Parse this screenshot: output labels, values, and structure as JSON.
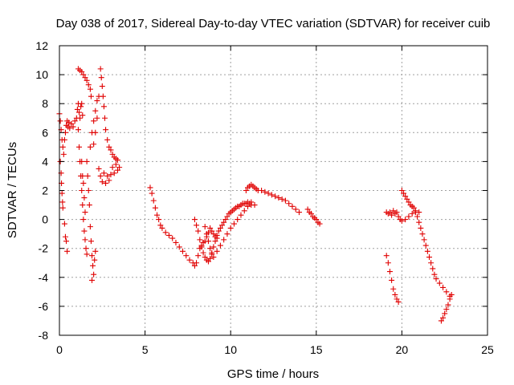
{
  "chart_data": {
    "type": "scatter",
    "title": "Day 038 of 2017, Sidereal Day-to-day VTEC variation (SDTVAR) for receiver cuib",
    "xlabel": "GPS time / hours",
    "ylabel": "SDTVAR / TECUs",
    "xlim": [
      0,
      25
    ],
    "ylim": [
      -8,
      12
    ],
    "xticks": [
      0,
      5,
      10,
      15,
      20,
      25
    ],
    "yticks": [
      -8,
      -6,
      -4,
      -2,
      0,
      2,
      4,
      6,
      8,
      10,
      12
    ],
    "xtick_labels": [
      "0",
      "5",
      "10",
      "15",
      "20",
      "25"
    ],
    "ytick_labels": [
      "-8",
      "-6",
      "-4",
      "-2",
      "0",
      "2",
      "4",
      "6",
      "8",
      "10",
      "12"
    ],
    "grid": true,
    "marker": "+",
    "color": "#e00000",
    "series": [
      {
        "name": "SDTVAR",
        "points": [
          [
            0.0,
            7.3
          ],
          [
            0.05,
            6.8
          ],
          [
            0.1,
            6.2
          ],
          [
            0.15,
            5.5
          ],
          [
            0.2,
            5.0
          ],
          [
            0.25,
            4.5
          ],
          [
            0.3,
            5.5
          ],
          [
            0.35,
            6.0
          ],
          [
            0.4,
            6.5
          ],
          [
            0.45,
            6.8
          ],
          [
            0.5,
            6.4
          ],
          [
            0.55,
            6.7
          ],
          [
            0.6,
            6.3
          ],
          [
            0.7,
            6.6
          ],
          [
            0.8,
            6.4
          ],
          [
            0.9,
            6.8
          ],
          [
            1.0,
            7.0
          ],
          [
            1.05,
            7.6
          ],
          [
            1.1,
            8.0
          ],
          [
            1.15,
            7.4
          ],
          [
            1.2,
            7.0
          ],
          [
            1.25,
            7.8
          ],
          [
            1.3,
            8.0
          ],
          [
            1.35,
            7.2
          ],
          [
            0.05,
            4.0
          ],
          [
            0.1,
            3.2
          ],
          [
            0.12,
            2.5
          ],
          [
            0.15,
            1.8
          ],
          [
            0.18,
            1.2
          ],
          [
            0.2,
            0.8
          ],
          [
            0.3,
            -0.3
          ],
          [
            0.35,
            -1.2
          ],
          [
            0.4,
            -1.5
          ],
          [
            0.45,
            -2.2
          ],
          [
            1.1,
            10.4
          ],
          [
            1.2,
            10.3
          ],
          [
            1.3,
            10.2
          ],
          [
            1.4,
            10.0
          ],
          [
            1.5,
            9.8
          ],
          [
            1.6,
            9.6
          ],
          [
            1.7,
            9.3
          ],
          [
            1.8,
            9.0
          ],
          [
            1.85,
            8.5
          ],
          [
            1.1,
            6.2
          ],
          [
            1.15,
            5.0
          ],
          [
            1.2,
            4.0
          ],
          [
            1.25,
            3.0
          ],
          [
            1.3,
            2.0
          ],
          [
            1.35,
            1.0
          ],
          [
            1.4,
            0.0
          ],
          [
            1.45,
            -0.8
          ],
          [
            1.5,
            -1.4
          ],
          [
            1.55,
            -2.0
          ],
          [
            1.6,
            -2.4
          ],
          [
            1.3,
            4.0
          ],
          [
            1.35,
            3.0
          ],
          [
            1.4,
            2.5
          ],
          [
            1.45,
            1.5
          ],
          [
            1.5,
            0.5
          ],
          [
            1.6,
            4.0
          ],
          [
            1.65,
            3.0
          ],
          [
            1.7,
            2.0
          ],
          [
            1.75,
            1.0
          ],
          [
            1.8,
            -0.5
          ],
          [
            1.85,
            -1.5
          ],
          [
            1.9,
            -2.5
          ],
          [
            1.95,
            -3.2
          ],
          [
            2.0,
            -3.8
          ],
          [
            1.9,
            -4.2
          ],
          [
            2.05,
            -2.8
          ],
          [
            2.1,
            -2.2
          ],
          [
            1.8,
            5.0
          ],
          [
            1.9,
            6.0
          ],
          [
            2.0,
            6.8
          ],
          [
            2.1,
            7.5
          ],
          [
            2.2,
            8.2
          ],
          [
            2.3,
            8.5
          ],
          [
            2.2,
            7.0
          ],
          [
            2.1,
            6.0
          ],
          [
            2.0,
            5.2
          ],
          [
            2.4,
            10.4
          ],
          [
            2.45,
            9.8
          ],
          [
            2.5,
            9.2
          ],
          [
            2.55,
            8.5
          ],
          [
            2.6,
            7.8
          ],
          [
            2.65,
            7.0
          ],
          [
            2.7,
            6.2
          ],
          [
            2.8,
            5.5
          ],
          [
            2.9,
            5.0
          ],
          [
            3.0,
            4.8
          ],
          [
            3.1,
            4.5
          ],
          [
            3.2,
            4.3
          ],
          [
            3.3,
            4.2
          ],
          [
            3.4,
            4.1
          ],
          [
            2.3,
            3.5
          ],
          [
            2.4,
            3.0
          ],
          [
            2.5,
            2.6
          ],
          [
            2.6,
            3.2
          ],
          [
            2.7,
            2.5
          ],
          [
            2.8,
            3.0
          ],
          [
            2.9,
            2.7
          ],
          [
            3.0,
            3.1
          ],
          [
            3.1,
            3.6
          ],
          [
            3.2,
            3.2
          ],
          [
            3.3,
            3.8
          ],
          [
            3.4,
            3.4
          ],
          [
            3.5,
            3.6
          ],
          [
            5.3,
            2.2
          ],
          [
            5.4,
            1.8
          ],
          [
            5.5,
            1.3
          ],
          [
            5.6,
            0.8
          ],
          [
            5.7,
            0.3
          ],
          [
            5.8,
            0.0
          ],
          [
            5.9,
            -0.4
          ],
          [
            6.0,
            -0.6
          ],
          [
            6.2,
            -0.9
          ],
          [
            6.4,
            -1.1
          ],
          [
            6.6,
            -1.3
          ],
          [
            6.8,
            -1.6
          ],
          [
            7.0,
            -1.9
          ],
          [
            7.2,
            -2.2
          ],
          [
            7.4,
            -2.5
          ],
          [
            7.6,
            -2.8
          ],
          [
            7.8,
            -3.0
          ],
          [
            7.9,
            -3.2
          ],
          [
            8.0,
            -3.0
          ],
          [
            8.1,
            -2.5
          ],
          [
            8.2,
            -2.0
          ],
          [
            8.3,
            -1.8
          ],
          [
            8.4,
            -1.6
          ],
          [
            8.5,
            -1.5
          ],
          [
            8.6,
            -1.2
          ],
          [
            8.7,
            -0.9
          ],
          [
            8.8,
            -0.6
          ],
          [
            8.9,
            -0.8
          ],
          [
            9.0,
            -1.0
          ],
          [
            9.1,
            -1.2
          ],
          [
            9.2,
            -1.3
          ],
          [
            7.9,
            0.0
          ],
          [
            8.0,
            -0.4
          ],
          [
            8.1,
            -0.8
          ],
          [
            8.2,
            -1.4
          ],
          [
            8.3,
            -1.9
          ],
          [
            8.4,
            -2.3
          ],
          [
            8.5,
            -2.6
          ],
          [
            8.6,
            -2.8
          ],
          [
            8.7,
            -2.9
          ],
          [
            8.8,
            -2.7
          ],
          [
            8.9,
            -2.3
          ],
          [
            9.0,
            -1.9
          ],
          [
            9.1,
            -1.5
          ],
          [
            9.2,
            -1.1
          ],
          [
            9.3,
            -0.8
          ],
          [
            9.4,
            -0.6
          ],
          [
            9.5,
            -0.4
          ],
          [
            9.6,
            -0.2
          ],
          [
            9.7,
            0.0
          ],
          [
            9.8,
            0.2
          ],
          [
            9.9,
            0.4
          ],
          [
            10.0,
            0.5
          ],
          [
            10.1,
            0.6
          ],
          [
            10.2,
            0.7
          ],
          [
            10.3,
            0.8
          ],
          [
            10.4,
            0.9
          ],
          [
            10.5,
            0.9
          ],
          [
            10.6,
            1.0
          ],
          [
            10.7,
            1.1
          ],
          [
            10.8,
            1.1
          ],
          [
            10.9,
            1.1
          ],
          [
            11.0,
            1.2
          ],
          [
            11.1,
            1.1
          ],
          [
            11.2,
            1.0
          ],
          [
            8.5,
            -0.5
          ],
          [
            8.6,
            -1.0
          ],
          [
            8.7,
            -1.5
          ],
          [
            8.8,
            -2.0
          ],
          [
            8.9,
            -2.4
          ],
          [
            9.0,
            -2.6
          ],
          [
            9.2,
            -2.2
          ],
          [
            9.4,
            -1.8
          ],
          [
            9.6,
            -1.4
          ],
          [
            9.8,
            -1.0
          ],
          [
            10.0,
            -0.6
          ],
          [
            10.2,
            -0.3
          ],
          [
            10.4,
            0.0
          ],
          [
            10.6,
            0.3
          ],
          [
            10.8,
            0.6
          ],
          [
            11.0,
            0.9
          ],
          [
            11.2,
            1.2
          ],
          [
            11.4,
            1.0
          ],
          [
            10.9,
            2.0
          ],
          [
            11.0,
            2.2
          ],
          [
            11.1,
            2.3
          ],
          [
            11.2,
            2.4
          ],
          [
            11.3,
            2.3
          ],
          [
            11.4,
            2.2
          ],
          [
            11.5,
            2.1
          ],
          [
            11.6,
            2.0
          ],
          [
            11.8,
            2.0
          ],
          [
            12.0,
            1.9
          ],
          [
            12.2,
            1.8
          ],
          [
            12.4,
            1.7
          ],
          [
            12.6,
            1.6
          ],
          [
            12.8,
            1.5
          ],
          [
            13.0,
            1.4
          ],
          [
            13.2,
            1.3
          ],
          [
            13.4,
            1.1
          ],
          [
            13.6,
            0.9
          ],
          [
            13.8,
            0.7
          ],
          [
            14.0,
            0.5
          ],
          [
            14.5,
            0.7
          ],
          [
            14.6,
            0.5
          ],
          [
            14.7,
            0.4
          ],
          [
            14.8,
            0.2
          ],
          [
            14.9,
            0.1
          ],
          [
            15.0,
            0.0
          ],
          [
            15.1,
            -0.2
          ],
          [
            15.2,
            -0.3
          ],
          [
            19.1,
            0.5
          ],
          [
            19.2,
            0.4
          ],
          [
            19.3,
            0.5
          ],
          [
            19.4,
            0.3
          ],
          [
            19.5,
            0.6
          ],
          [
            19.6,
            0.4
          ],
          [
            19.7,
            0.5
          ],
          [
            19.8,
            0.2
          ],
          [
            19.1,
            -2.5
          ],
          [
            19.2,
            -3.0
          ],
          [
            19.3,
            -3.6
          ],
          [
            19.4,
            -4.2
          ],
          [
            19.5,
            -4.8
          ],
          [
            19.6,
            -5.2
          ],
          [
            19.7,
            -5.5
          ],
          [
            19.8,
            -5.7
          ],
          [
            20.0,
            2.0
          ],
          [
            20.1,
            1.8
          ],
          [
            20.2,
            1.6
          ],
          [
            20.3,
            1.4
          ],
          [
            20.4,
            1.2
          ],
          [
            20.5,
            1.0
          ],
          [
            20.6,
            0.9
          ],
          [
            20.7,
            0.8
          ],
          [
            20.8,
            0.5
          ],
          [
            20.9,
            0.2
          ],
          [
            21.0,
            -0.2
          ],
          [
            21.1,
            -0.6
          ],
          [
            21.2,
            -1.0
          ],
          [
            21.3,
            -1.4
          ],
          [
            21.4,
            -1.8
          ],
          [
            21.5,
            -2.2
          ],
          [
            21.6,
            -2.6
          ],
          [
            21.7,
            -3.0
          ],
          [
            21.8,
            -3.4
          ],
          [
            21.9,
            -3.8
          ],
          [
            22.0,
            -4.1
          ],
          [
            22.2,
            -4.4
          ],
          [
            22.4,
            -4.7
          ],
          [
            22.6,
            -5.0
          ],
          [
            22.8,
            -5.3
          ],
          [
            19.9,
            0.0
          ],
          [
            20.0,
            -0.1
          ],
          [
            20.2,
            0.0
          ],
          [
            20.4,
            0.2
          ],
          [
            20.6,
            0.4
          ],
          [
            20.8,
            0.6
          ],
          [
            21.0,
            0.5
          ],
          [
            22.3,
            -7.0
          ],
          [
            22.4,
            -6.8
          ],
          [
            22.5,
            -6.5
          ],
          [
            22.6,
            -6.2
          ],
          [
            22.7,
            -5.9
          ],
          [
            22.8,
            -5.5
          ],
          [
            22.9,
            -5.2
          ]
        ]
      }
    ]
  }
}
